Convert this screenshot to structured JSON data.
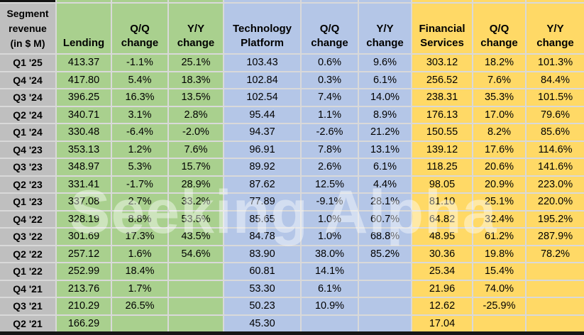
{
  "watermark": {
    "text": "Seeking Alpha"
  },
  "corner_header": "Segment\nrevenue\n(in $ M)",
  "colors": {
    "label_bg": "#bfbfbf",
    "lending_bg": "#a9d08e",
    "technology_bg": "#b4c6e7",
    "financial_bg": "#ffd966",
    "gridline": "#d9d9d9",
    "edge_bar": "#161616"
  },
  "groups": [
    {
      "name": "Lending",
      "qq_label": "Q/Q\nchange",
      "yy_label": "Y/Y\nchange"
    },
    {
      "name": "Technology\nPlatform",
      "qq_label": "Q/Q\nchange",
      "yy_label": "Y/Y\nchange"
    },
    {
      "name": "Financial\nServices",
      "qq_label": "Q/Q\nchange",
      "yy_label": "Y/Y\nchange"
    }
  ],
  "rows": [
    {
      "label": "Q1 '25",
      "values": [
        "413.37",
        "-1.1%",
        "25.1%",
        "103.43",
        "0.6%",
        "9.6%",
        "303.12",
        "18.2%",
        "101.3%"
      ]
    },
    {
      "label": "Q4 '24",
      "values": [
        "417.80",
        "5.4%",
        "18.3%",
        "102.84",
        "0.3%",
        "6.1%",
        "256.52",
        "7.6%",
        "84.4%"
      ]
    },
    {
      "label": "Q3 '24",
      "values": [
        "396.25",
        "16.3%",
        "13.5%",
        "102.54",
        "7.4%",
        "14.0%",
        "238.31",
        "35.3%",
        "101.5%"
      ]
    },
    {
      "label": "Q2 '24",
      "values": [
        "340.71",
        "3.1%",
        "2.8%",
        "95.44",
        "1.1%",
        "8.9%",
        "176.13",
        "17.0%",
        "79.6%"
      ]
    },
    {
      "label": "Q1 '24",
      "values": [
        "330.48",
        "-6.4%",
        "-2.0%",
        "94.37",
        "-2.6%",
        "21.2%",
        "150.55",
        "8.2%",
        "85.6%"
      ]
    },
    {
      "label": "Q4 '23",
      "values": [
        "353.13",
        "1.2%",
        "7.6%",
        "96.91",
        "7.8%",
        "13.1%",
        "139.12",
        "17.6%",
        "114.6%"
      ]
    },
    {
      "label": "Q3 '23",
      "values": [
        "348.97",
        "5.3%",
        "15.7%",
        "89.92",
        "2.6%",
        "6.1%",
        "118.25",
        "20.6%",
        "141.6%"
      ]
    },
    {
      "label": "Q2 '23",
      "values": [
        "331.41",
        "-1.7%",
        "28.9%",
        "87.62",
        "12.5%",
        "4.4%",
        "98.05",
        "20.9%",
        "223.0%"
      ]
    },
    {
      "label": "Q1 '23",
      "values": [
        "337.08",
        "2.7%",
        "33.2%",
        "77.89",
        "-9.1%",
        "28.1%",
        "81.10",
        "25.1%",
        "220.0%"
      ]
    },
    {
      "label": "Q4 '22",
      "values": [
        "328.19",
        "8.8%",
        "53.5%",
        "85.65",
        "1.0%",
        "60.7%",
        "64.82",
        "32.4%",
        "195.2%"
      ]
    },
    {
      "label": "Q3 '22",
      "values": [
        "301.69",
        "17.3%",
        "43.5%",
        "84.78",
        "1.0%",
        "68.8%",
        "48.95",
        "61.2%",
        "287.9%"
      ]
    },
    {
      "label": "Q2 '22",
      "values": [
        "257.12",
        "1.6%",
        "54.6%",
        "83.90",
        "38.0%",
        "85.2%",
        "30.36",
        "19.8%",
        "78.2%"
      ]
    },
    {
      "label": "Q1 '22",
      "values": [
        "252.99",
        "18.4%",
        "",
        "60.81",
        "14.1%",
        "",
        "25.34",
        "15.4%",
        ""
      ]
    },
    {
      "label": "Q4 '21",
      "values": [
        "213.76",
        "1.7%",
        "",
        "53.30",
        "6.1%",
        "",
        "21.96",
        "74.0%",
        ""
      ]
    },
    {
      "label": "Q3 '21",
      "values": [
        "210.29",
        "26.5%",
        "",
        "50.23",
        "10.9%",
        "",
        "12.62",
        "-25.9%",
        ""
      ]
    },
    {
      "label": "Q2 '21",
      "values": [
        "166.29",
        "",
        "",
        "45.30",
        "",
        "",
        "17.04",
        "",
        ""
      ]
    }
  ],
  "chart_data": {
    "type": "table",
    "title": "Segment revenue (in $ M)",
    "categories": [
      "Q1 '25",
      "Q4 '24",
      "Q3 '24",
      "Q2 '24",
      "Q1 '24",
      "Q4 '23",
      "Q3 '23",
      "Q2 '23",
      "Q1 '23",
      "Q4 '22",
      "Q3 '22",
      "Q2 '22",
      "Q1 '22",
      "Q4 '21",
      "Q3 '21",
      "Q2 '21"
    ],
    "series": [
      {
        "name": "Lending revenue ($M)",
        "values": [
          413.37,
          417.8,
          396.25,
          340.71,
          330.48,
          353.13,
          348.97,
          331.41,
          337.08,
          328.19,
          301.69,
          257.12,
          252.99,
          213.76,
          210.29,
          166.29
        ]
      },
      {
        "name": "Lending Q/Q change (%)",
        "values": [
          -1.1,
          5.4,
          16.3,
          3.1,
          -6.4,
          1.2,
          5.3,
          -1.7,
          2.7,
          8.8,
          17.3,
          1.6,
          18.4,
          1.7,
          26.5,
          null
        ]
      },
      {
        "name": "Lending Y/Y change (%)",
        "values": [
          25.1,
          18.3,
          13.5,
          2.8,
          -2.0,
          7.6,
          15.7,
          28.9,
          33.2,
          53.5,
          43.5,
          54.6,
          null,
          null,
          null,
          null
        ]
      },
      {
        "name": "Technology Platform revenue ($M)",
        "values": [
          103.43,
          102.84,
          102.54,
          95.44,
          94.37,
          96.91,
          89.92,
          87.62,
          77.89,
          85.65,
          84.78,
          83.9,
          60.81,
          53.3,
          50.23,
          45.3
        ]
      },
      {
        "name": "Technology Platform Q/Q change (%)",
        "values": [
          0.6,
          0.3,
          7.4,
          1.1,
          -2.6,
          7.8,
          2.6,
          12.5,
          -9.1,
          1.0,
          1.0,
          38.0,
          14.1,
          6.1,
          10.9,
          null
        ]
      },
      {
        "name": "Technology Platform Y/Y change (%)",
        "values": [
          9.6,
          6.1,
          14.0,
          8.9,
          21.2,
          13.1,
          6.1,
          4.4,
          28.1,
          60.7,
          68.8,
          85.2,
          null,
          null,
          null,
          null
        ]
      },
      {
        "name": "Financial Services revenue ($M)",
        "values": [
          303.12,
          256.52,
          238.31,
          176.13,
          150.55,
          139.12,
          118.25,
          98.05,
          81.1,
          64.82,
          48.95,
          30.36,
          25.34,
          21.96,
          12.62,
          17.04
        ]
      },
      {
        "name": "Financial Services Q/Q change (%)",
        "values": [
          18.2,
          7.6,
          35.3,
          17.0,
          8.2,
          17.6,
          20.6,
          20.9,
          25.1,
          32.4,
          61.2,
          19.8,
          15.4,
          74.0,
          -25.9,
          null
        ]
      },
      {
        "name": "Financial Services Y/Y change (%)",
        "values": [
          101.3,
          84.4,
          101.5,
          79.6,
          85.6,
          114.6,
          141.6,
          223.0,
          220.0,
          195.2,
          287.9,
          78.2,
          null,
          null,
          null,
          null
        ]
      }
    ]
  }
}
